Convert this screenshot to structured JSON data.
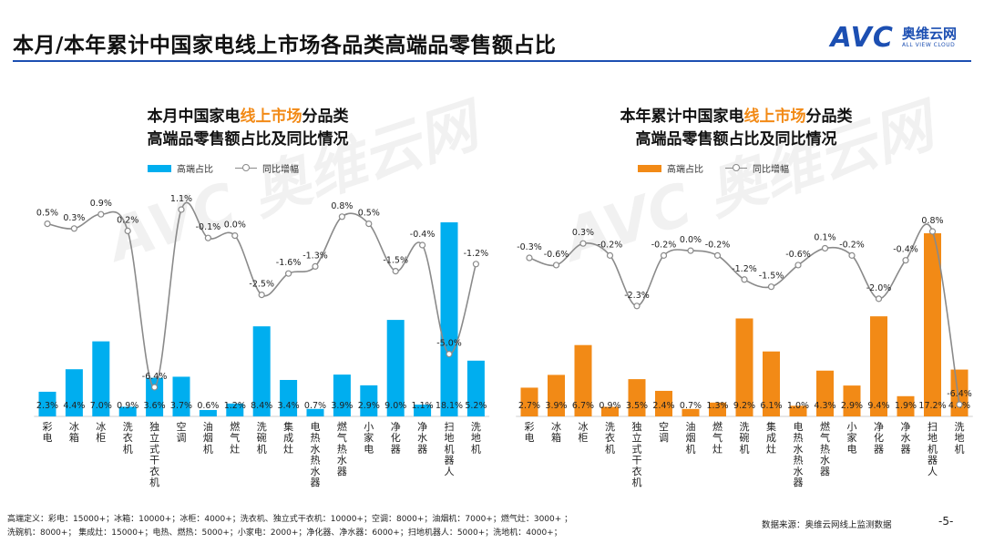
{
  "page_title": "本月/本年累计中国家电线上市场各品类高端品零售额占比",
  "logo": {
    "text": "AVC",
    "cn": "奥维云网",
    "en": "ALL VIEW CLOUD"
  },
  "watermark": "AVC 奥维云网",
  "legend": {
    "bar": "高端占比",
    "line": "同比增幅"
  },
  "colors": {
    "left_bar": "#00aeef",
    "right_bar": "#f28a16",
    "line": "#8a8a8a",
    "highlight": "#f28a16"
  },
  "chart_data": [
    {
      "type": "bar+line",
      "title_pre": "本月中国家电",
      "title_hl": "线上市场",
      "title_post": "分品类",
      "title_line2": "高端品零售额占比及同比情况",
      "categories": [
        "彩电",
        "冰箱",
        "冰柜",
        "洗衣机",
        "独立式干衣机",
        "空调",
        "油烟机",
        "燃气灶",
        "洗碗机",
        "集成灶",
        "电热水热水器",
        "燃气热水器",
        "小家电",
        "净化器",
        "净水器",
        "扫地机器人",
        "洗地机"
      ],
      "bar_series": {
        "name": "高端占比",
        "values": [
          2.3,
          4.4,
          7.0,
          0.9,
          3.6,
          3.7,
          0.6,
          1.2,
          8.4,
          3.4,
          0.7,
          3.9,
          2.9,
          9.0,
          1.1,
          18.1,
          5.2
        ],
        "labels": [
          "2.3%",
          "4.4%",
          "7.0%",
          "0.9%",
          "3.6%",
          "3.7%",
          "0.6%",
          "1.2%",
          "8.4%",
          "3.4%",
          "0.7%",
          "3.9%",
          "2.9%",
          "9.0%",
          "1.1%",
          "18.1%",
          "5.2%"
        ]
      },
      "line_series": {
        "name": "同比增幅",
        "values": [
          0.5,
          0.3,
          0.9,
          0.2,
          -6.4,
          1.1,
          -0.1,
          0.0,
          -2.5,
          -1.6,
          -1.3,
          0.8,
          0.5,
          -1.5,
          -0.4,
          -5.0,
          -1.2
        ],
        "labels": [
          "0.5%",
          "0.3%",
          "0.9%",
          "0.2%",
          "-6.4%",
          "1.1%",
          "-0.1%",
          "0.0%",
          "-2.5%",
          "-1.6%",
          "-1.3%",
          "0.8%",
          "0.5%",
          "-1.5%",
          "-0.4%",
          "-5.0%",
          "-1.2%"
        ]
      },
      "bar_ylim": [
        0,
        18.1
      ],
      "line_ylim": [
        -6.4,
        1.1
      ]
    },
    {
      "type": "bar+line",
      "title_pre": "本年累计中国家电",
      "title_hl": "线上市场",
      "title_post": "分品类",
      "title_line2": "高端品零售额占比及同比情况",
      "categories": [
        "彩电",
        "冰箱",
        "冰柜",
        "洗衣机",
        "独立式干衣机",
        "空调",
        "油烟机",
        "燃气灶",
        "洗碗机",
        "集成灶",
        "电热水热水器",
        "燃气热水器",
        "小家电",
        "净化器",
        "净水器",
        "扫地机器人",
        "洗地机"
      ],
      "bar_series": {
        "name": "高端占比",
        "values": [
          2.7,
          3.9,
          6.7,
          0.9,
          3.5,
          2.4,
          0.7,
          1.3,
          9.2,
          6.1,
          1.0,
          4.3,
          2.9,
          9.4,
          1.9,
          17.2,
          4.4
        ],
        "labels": [
          "2.7%",
          "3.9%",
          "6.7%",
          "0.9%",
          "3.5%",
          "2.4%",
          "0.7%",
          "1.3%",
          "9.2%",
          "6.1%",
          "1.0%",
          "4.3%",
          "2.9%",
          "9.4%",
          "1.9%",
          "17.2%",
          "4.4%"
        ]
      },
      "line_series": {
        "name": "同比增幅",
        "values": [
          -0.3,
          -0.6,
          0.3,
          -0.2,
          -2.3,
          -0.2,
          0.0,
          -0.2,
          -1.2,
          -1.5,
          -0.6,
          0.1,
          -0.2,
          -2.0,
          -0.4,
          0.8,
          -6.4
        ],
        "labels": [
          "-0.3%",
          "-0.6%",
          "0.3%",
          "-0.2%",
          "-2.3%",
          "-0.2%",
          "0.0%",
          "-0.2%",
          "-1.2%",
          "-1.5%",
          "-0.6%",
          "0.1%",
          "-0.2%",
          "-2.0%",
          "-0.4%",
          "0.8%",
          "-6.4%"
        ]
      },
      "bar_ylim": [
        0,
        17.2
      ],
      "line_ylim": [
        -6.4,
        0.8
      ]
    }
  ],
  "footnote_line1": "高端定义：彩电：15000+；冰箱：10000+；冰柜：4000+；洗衣机、独立式干衣机：10000+；空调：8000+；油烟机：7000+；燃气灶：3000+ ；",
  "footnote_line2": "洗碗机：8000+；  集成灶：15000+；电热、燃热：5000+；小家电：2000+；净化器、净水器：6000+；扫地机器人：5000+；洗地机：4000+；",
  "source": "数据来源：奥维云网线上监测数据",
  "page_number": "-5-"
}
